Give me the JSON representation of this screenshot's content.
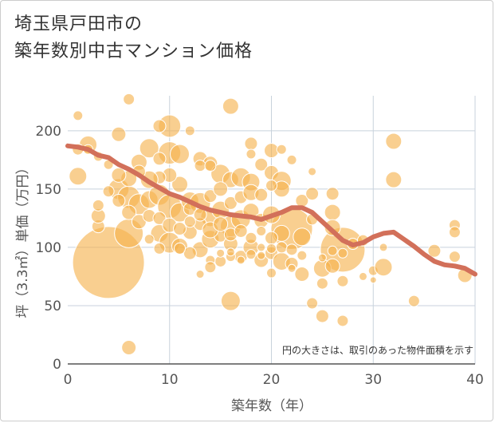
{
  "title_lines": [
    "埼玉県戸田市の",
    "築年数別中古マンション価格"
  ],
  "annotation": "円の大きさは、取引のあった物件面積を示す",
  "colors": {
    "bubble": "#f5b14c",
    "bubble_stroke": "#ffffff",
    "line": "#d2705a",
    "grid": "#c8d2dc",
    "axis": "#555555"
  },
  "chart_data": {
    "type": "scatter",
    "xlabel": "築年数（年）",
    "ylabel": "坪（3.3㎡）単価（万円）",
    "xlim": [
      0,
      40
    ],
    "ylim": [
      0,
      230
    ],
    "xticks": [
      0,
      10,
      20,
      30,
      40
    ],
    "yticks": [
      0,
      50,
      100,
      150,
      200
    ],
    "grid": true,
    "bubbles": [
      [
        4,
        87,
        45
      ],
      [
        10,
        204,
        14
      ],
      [
        16,
        221,
        10
      ],
      [
        6,
        227,
        7
      ],
      [
        1,
        213,
        6
      ],
      [
        6,
        14,
        9
      ],
      [
        16,
        54,
        12
      ],
      [
        27,
        98,
        28
      ],
      [
        22,
        116,
        26
      ],
      [
        6,
        112,
        18
      ],
      [
        32,
        191,
        10
      ],
      [
        32,
        158,
        10
      ],
      [
        1,
        161,
        11
      ],
      [
        2,
        188,
        11
      ],
      [
        5,
        197,
        9
      ],
      [
        8,
        185,
        12
      ],
      [
        10,
        181,
        14
      ],
      [
        11,
        180,
        12
      ],
      [
        13,
        176,
        9
      ],
      [
        14,
        172,
        9
      ],
      [
        15,
        163,
        12
      ],
      [
        16,
        158,
        10
      ],
      [
        17,
        160,
        12
      ],
      [
        18,
        156,
        11
      ],
      [
        19,
        171,
        8
      ],
      [
        20,
        164,
        9
      ],
      [
        21,
        157,
        12
      ],
      [
        5,
        150,
        13
      ],
      [
        6,
        143,
        14
      ],
      [
        7,
        137,
        13
      ],
      [
        8,
        141,
        11
      ],
      [
        9,
        145,
        13
      ],
      [
        10,
        135,
        15
      ],
      [
        11,
        130,
        12
      ],
      [
        12,
        140,
        11
      ],
      [
        13,
        138,
        13
      ],
      [
        14,
        126,
        12
      ],
      [
        15,
        132,
        11
      ],
      [
        16,
        118,
        13
      ],
      [
        17,
        124,
        12
      ],
      [
        18,
        131,
        10
      ],
      [
        19,
        123,
        9
      ],
      [
        20,
        128,
        11
      ],
      [
        21,
        112,
        10
      ],
      [
        23,
        109,
        11
      ],
      [
        9,
        112,
        11
      ],
      [
        10,
        104,
        13
      ],
      [
        11,
        101,
        10
      ],
      [
        12,
        113,
        9
      ],
      [
        13,
        98,
        10
      ],
      [
        14,
        107,
        11
      ],
      [
        15,
        110,
        8
      ],
      [
        16,
        103,
        9
      ],
      [
        17,
        92,
        8
      ],
      [
        18,
        100,
        10
      ],
      [
        19,
        89,
        9
      ],
      [
        20,
        95,
        8
      ],
      [
        21,
        88,
        11
      ],
      [
        22,
        86,
        8
      ],
      [
        23,
        77,
        9
      ],
      [
        25,
        82,
        11
      ],
      [
        26,
        84,
        9
      ],
      [
        27,
        71,
        7
      ],
      [
        25,
        69,
        7
      ],
      [
        24,
        52,
        7
      ],
      [
        25,
        41,
        8
      ],
      [
        27,
        37,
        7
      ],
      [
        29,
        75,
        5
      ],
      [
        30,
        80,
        6
      ],
      [
        31,
        83,
        11
      ],
      [
        34,
        54,
        7
      ],
      [
        36,
        97,
        8
      ],
      [
        38,
        119,
        7
      ],
      [
        38,
        113,
        7
      ],
      [
        38,
        92,
        7
      ],
      [
        39,
        76,
        9
      ],
      [
        3,
        118,
        8
      ],
      [
        3,
        127,
        9
      ],
      [
        3,
        136,
        7
      ],
      [
        3,
        178,
        6
      ],
      [
        2,
        184,
        6
      ],
      [
        1,
        184,
        7
      ],
      [
        7,
        173,
        10
      ],
      [
        9,
        176,
        8
      ],
      [
        9,
        204,
        8
      ],
      [
        12,
        200,
        6
      ],
      [
        13,
        170,
        7
      ],
      [
        14,
        170,
        7
      ],
      [
        18,
        189,
        8
      ],
      [
        18,
        180,
        6
      ],
      [
        20,
        183,
        9
      ],
      [
        21,
        184,
        6
      ],
      [
        21,
        150,
        10
      ],
      [
        22,
        175,
        6
      ],
      [
        23,
        140,
        8
      ],
      [
        24,
        146,
        8
      ],
      [
        26,
        146,
        8
      ],
      [
        26,
        130,
        10
      ],
      [
        26,
        117,
        10
      ],
      [
        24,
        124,
        7
      ],
      [
        24,
        165,
        5
      ],
      [
        12,
        133,
        8
      ],
      [
        13,
        120,
        8
      ],
      [
        14,
        144,
        8
      ],
      [
        15,
        150,
        9
      ],
      [
        16,
        138,
        8
      ],
      [
        17,
        143,
        8
      ],
      [
        18,
        147,
        10
      ],
      [
        19,
        145,
        8
      ],
      [
        20,
        153,
        7
      ],
      [
        11,
        154,
        10
      ],
      [
        10,
        162,
        9
      ],
      [
        9,
        160,
        8
      ],
      [
        8,
        158,
        11
      ],
      [
        7,
        165,
        8
      ],
      [
        6,
        159,
        10
      ],
      [
        5,
        162,
        9
      ],
      [
        4,
        171,
        6
      ],
      [
        4,
        148,
        7
      ],
      [
        5,
        140,
        8
      ],
      [
        6,
        130,
        9
      ],
      [
        7,
        122,
        9
      ],
      [
        8,
        127,
        8
      ],
      [
        9,
        125,
        8
      ],
      [
        10,
        119,
        9
      ],
      [
        11,
        116,
        8
      ],
      [
        12,
        122,
        7
      ],
      [
        13,
        128,
        8
      ],
      [
        14,
        115,
        10
      ],
      [
        15,
        120,
        9
      ],
      [
        16,
        111,
        8
      ],
      [
        17,
        114,
        8
      ],
      [
        18,
        108,
        7
      ],
      [
        19,
        114,
        6
      ],
      [
        20,
        108,
        8
      ],
      [
        21,
        100,
        7
      ],
      [
        22,
        98,
        7
      ],
      [
        23,
        93,
        6
      ],
      [
        20,
        99,
        6
      ],
      [
        19,
        100,
        5
      ],
      [
        17,
        89,
        5
      ],
      [
        15,
        88,
        7
      ],
      [
        14,
        89,
        6
      ],
      [
        13,
        77,
        5
      ],
      [
        14,
        83,
        7
      ],
      [
        16,
        92,
        6
      ],
      [
        18,
        94,
        6
      ],
      [
        19,
        93,
        5
      ],
      [
        15,
        95,
        5
      ],
      [
        16,
        96,
        5
      ],
      [
        12,
        95,
        8
      ],
      [
        11,
        99,
        7
      ],
      [
        9,
        99,
        7
      ],
      [
        8,
        107,
        6
      ],
      [
        27,
        95,
        6
      ],
      [
        28,
        103,
        7
      ],
      [
        29,
        106,
        7
      ],
      [
        30,
        72,
        4
      ],
      [
        31,
        100,
        5
      ],
      [
        20,
        78,
        6
      ],
      [
        22,
        82,
        5
      ],
      [
        25,
        91,
        5
      ],
      [
        26,
        97,
        6
      ]
    ],
    "series": [
      {
        "x": [
          0,
          1,
          2,
          3,
          4,
          5,
          6,
          7,
          8,
          9,
          10,
          11,
          12,
          13,
          14,
          15,
          16,
          17,
          18,
          19,
          20,
          21,
          22,
          23,
          24,
          25,
          26,
          27,
          28,
          29,
          30,
          31,
          32,
          33,
          34,
          35,
          36,
          37,
          38,
          39,
          40
        ],
        "values": [
          187,
          186,
          184,
          179,
          177,
          171,
          167,
          162,
          156,
          151,
          146,
          143,
          139,
          135,
          132,
          130,
          128,
          127,
          126,
          124,
          127,
          130,
          134,
          134,
          130,
          122,
          114,
          106,
          102,
          104,
          109,
          112,
          113,
          107,
          101,
          94,
          88,
          85,
          84,
          82,
          77
        ]
      }
    ]
  }
}
